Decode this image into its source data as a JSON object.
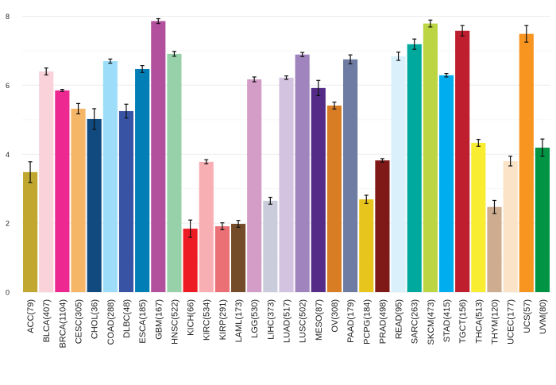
{
  "chart_data": {
    "type": "bar",
    "title": "",
    "xlabel": "",
    "ylabel": "",
    "ylim": [
      0,
      8
    ],
    "yticks": [
      0,
      2,
      4,
      6,
      8
    ],
    "grid": true,
    "categories": [
      "ACC(79)",
      "BLCA(407)",
      "BRCA(1104)",
      "CESC(305)",
      "CHOL(36)",
      "COAD(288)",
      "DLBC(48)",
      "ESCA(185)",
      "GBM(167)",
      "HNSC(522)",
      "KICH(66)",
      "KIRC(534)",
      "KIRP(291)",
      "LAML(173)",
      "LGG(530)",
      "LIHC(373)",
      "LUAD(517)",
      "LUSC(502)",
      "MESO(87)",
      "OV(308)",
      "PAAD(179)",
      "PCPG(184)",
      "PRAD(498)",
      "READ(95)",
      "SARC(263)",
      "SKCM(473)",
      "STAD(415)",
      "TGCT(156)",
      "THCA(513)",
      "THYM(120)",
      "UCEC(177)",
      "UCS(57)",
      "UVM(80)"
    ],
    "values": [
      3.48,
      6.4,
      5.85,
      5.32,
      5.02,
      6.7,
      5.25,
      6.47,
      7.86,
      6.91,
      1.84,
      3.78,
      1.91,
      1.98,
      6.17,
      2.65,
      6.22,
      6.89,
      5.92,
      5.41,
      6.75,
      2.69,
      3.82,
      6.84,
      7.19,
      7.79,
      6.29,
      7.58,
      4.33,
      2.47,
      3.8,
      7.49,
      4.19
    ],
    "errors": [
      0.3,
      0.1,
      0.03,
      0.15,
      0.3,
      0.06,
      0.2,
      0.1,
      0.07,
      0.07,
      0.25,
      0.06,
      0.1,
      0.1,
      0.07,
      0.1,
      0.05,
      0.06,
      0.22,
      0.1,
      0.13,
      0.12,
      0.05,
      0.12,
      0.15,
      0.1,
      0.05,
      0.15,
      0.1,
      0.19,
      0.14,
      0.24,
      0.25
    ],
    "colors": [
      "#C1A72F",
      "#FAD2D9",
      "#ED2891",
      "#F6B667",
      "#104A7F",
      "#9EDDF9",
      "#3953A4",
      "#007EB5",
      "#B2509E",
      "#97D1A9",
      "#ED1C24",
      "#F8AFB3",
      "#EA7075",
      "#754C29",
      "#D49DC7",
      "#CACCDB",
      "#D3C3E0",
      "#A084BD",
      "#542C88",
      "#D97D25",
      "#6E7BA2",
      "#E8C51D",
      "#7E1918",
      "#DAF1FC",
      "#00A99D",
      "#BBD642",
      "#00AEEF",
      "#BE1E2D",
      "#F9ED32",
      "#CEAC8F",
      "#FBE3C7",
      "#F89420",
      "#009444"
    ]
  }
}
